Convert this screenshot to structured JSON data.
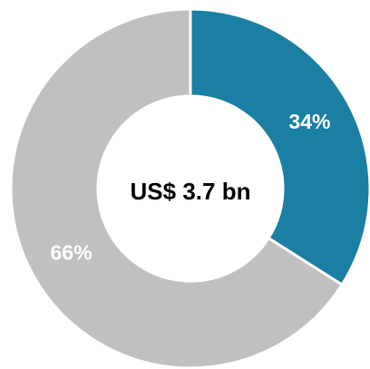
{
  "chart_data": {
    "type": "pie",
    "variant": "donut",
    "center_text": "US$ 3.7 bn",
    "slices": [
      {
        "value": 34,
        "label": "34%",
        "color": "#1a7fa2"
      },
      {
        "value": 66,
        "label": "66%",
        "color": "#c0c0c0"
      }
    ],
    "start_angle": "12 o'clock",
    "direction": "clockwise",
    "separator_color": "#ffffff"
  }
}
